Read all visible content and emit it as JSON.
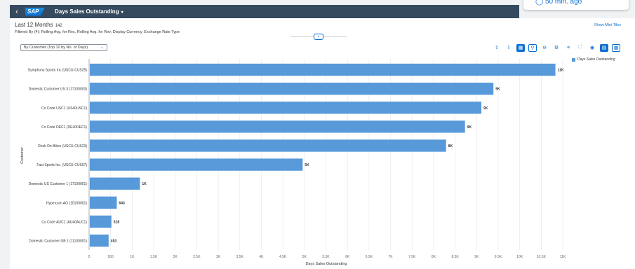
{
  "shell": {
    "back_icon": "back-arrow-icon",
    "logo": "SAP",
    "app_title": "Days Sales Outstanding",
    "app_caret": "▾"
  },
  "tile": {
    "refresh_text": "◯ 50 min. ago"
  },
  "header": {
    "title": "Last 12 Months",
    "count": "142",
    "filter_text": "Filtered By (4): Rolling Avg. for Rec, Rolling Avg. for Rev, Display Currency, Exchange Rate Type",
    "show_mini_tiles": "Show Mini Tiles"
  },
  "toolbar": {
    "view_select": "By Customer (Top 10 by No. of Days)",
    "dropdown_icon": "⌄",
    "icons": [
      "sort-ascending-icon",
      "sort-descending-icon",
      "chart-mode-icon",
      "zoom-search-icon",
      "zoom-out-icon",
      "settings-icon",
      "legend-icon",
      "fullscreen-icon",
      "personalize-icon",
      "chart-view-icon",
      "table-view-icon"
    ]
  },
  "chart_data": {
    "type": "bar",
    "orientation": "horizontal",
    "categories": [
      "Symphony Sports Inc (USCU-CUS25)",
      "Domestic Customer US 3 (17100003)",
      "Co Code USC1 (US40USC1)",
      "Co Code DEC1 (DE40DEC1)",
      "Rock On Bikes (USCU-CUS23)",
      "Fast Sports Inc. (USCU-CUS07)",
      "Domestic US Customer 1 (17100001)",
      "Hypercom AG (10100001)",
      "Co Code AUC1 (AU40AUC1)",
      "Domestic Customer GB 1 (11100001)"
    ],
    "series": [
      {
        "name": "Days Sales Outstanding",
        "values": [
          10830,
          9390,
          9110,
          8730,
          8290,
          4960,
          1180,
          643,
          518,
          453
        ],
        "labels": [
          "11K",
          "9K",
          "9K",
          "9K",
          "8K",
          "5K",
          "1K",
          "643",
          "518",
          "453"
        ]
      }
    ],
    "xlabel": "Days Sales Outstanding",
    "ylabel": "Customer",
    "xticks": [
      0,
      500,
      1000,
      1500,
      2000,
      2500,
      3000,
      3500,
      4000,
      4500,
      5000,
      5500,
      6000,
      6500,
      7000,
      7500,
      8000,
      8500,
      9000,
      9500,
      10000,
      10500,
      11000
    ],
    "xtick_labels": [
      "0",
      "500",
      "1K",
      "1.5K",
      "2K",
      "2.5K",
      "3K",
      "3.5K",
      "4K",
      "4.5K",
      "5K",
      "5.5K",
      "6K",
      "6.5K",
      "7K",
      "7.5K",
      "8K",
      "8.5K",
      "9K",
      "9.5K",
      "10K",
      "10.5K",
      "11K"
    ],
    "xlim": [
      0,
      11000
    ],
    "grid": true,
    "legend_position": "top-right",
    "color": "#5899da"
  }
}
